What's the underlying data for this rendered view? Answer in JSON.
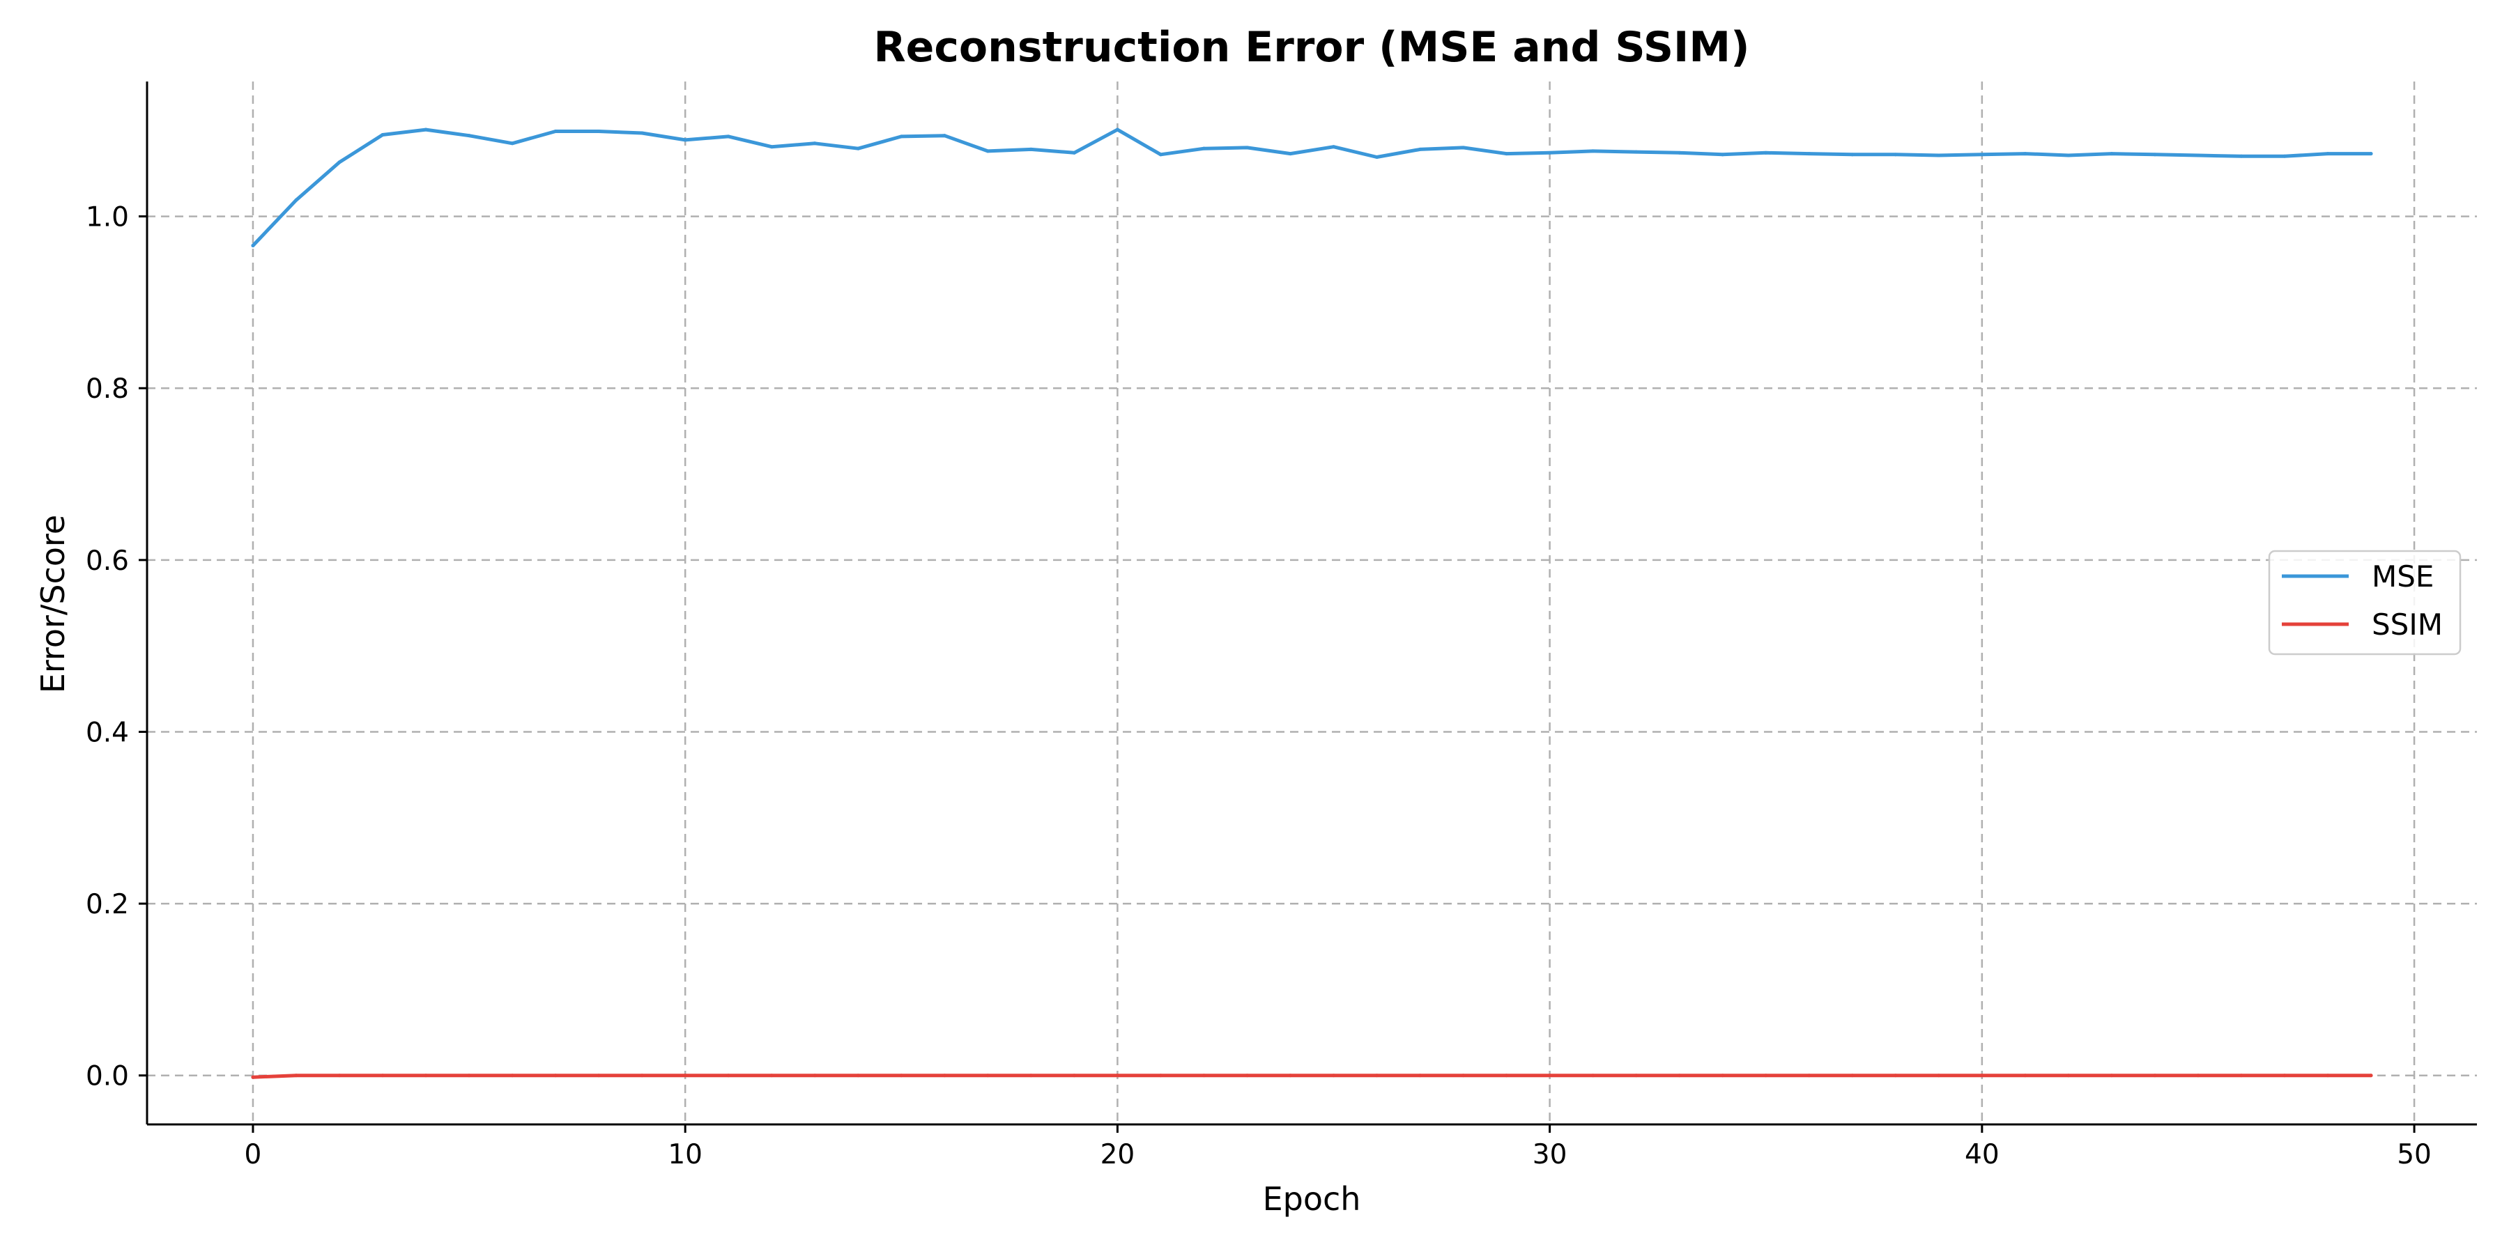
{
  "chart_data": {
    "type": "line",
    "title": "Reconstruction Error (MSE and SSIM)",
    "xlabel": "Epoch",
    "ylabel": "Error/Score",
    "xlim": [
      -2.45,
      51.45
    ],
    "ylim": [
      -0.057,
      1.157
    ],
    "xticks": [
      0,
      10,
      20,
      30,
      40,
      50
    ],
    "yticks": [
      0.0,
      0.2,
      0.4,
      0.6,
      0.8,
      1.0
    ],
    "grid": true,
    "legend_position": "center-right",
    "x": [
      0,
      1,
      2,
      3,
      4,
      5,
      6,
      7,
      8,
      9,
      10,
      11,
      12,
      13,
      14,
      15,
      16,
      17,
      18,
      19,
      20,
      21,
      22,
      23,
      24,
      25,
      26,
      27,
      28,
      29,
      30,
      31,
      32,
      33,
      34,
      35,
      36,
      37,
      38,
      39,
      40,
      41,
      42,
      43,
      44,
      45,
      46,
      47,
      48,
      49
    ],
    "series": [
      {
        "name": "MSE",
        "color": "#3b97d9",
        "values": [
          0.966,
          1.019,
          1.063,
          1.095,
          1.101,
          1.094,
          1.085,
          1.099,
          1.099,
          1.097,
          1.089,
          1.093,
          1.081,
          1.085,
          1.079,
          1.093,
          1.094,
          1.076,
          1.078,
          1.074,
          1.101,
          1.072,
          1.079,
          1.08,
          1.073,
          1.081,
          1.069,
          1.078,
          1.08,
          1.073,
          1.074,
          1.076,
          1.075,
          1.074,
          1.072,
          1.074,
          1.073,
          1.072,
          1.072,
          1.071,
          1.072,
          1.073,
          1.071,
          1.073,
          1.072,
          1.071,
          1.07,
          1.07,
          1.073,
          1.073
        ]
      },
      {
        "name": "SSIM",
        "color": "#e5413a",
        "values": [
          -0.002,
          0.0,
          0.0,
          0.0,
          0.0,
          0.0,
          0.0,
          0.0,
          0.0,
          0.0,
          0.0,
          0.0,
          0.0,
          0.0,
          0.0,
          0.0,
          0.0,
          0.0,
          0.0,
          0.0,
          0.0,
          0.0,
          0.0,
          0.0,
          0.0,
          0.0,
          0.0,
          0.0,
          0.0,
          0.0,
          0.0,
          0.0,
          0.0,
          0.0,
          0.0,
          0.0,
          0.0,
          0.0,
          0.0,
          0.0,
          0.0,
          0.0,
          0.0,
          0.0,
          0.0,
          0.0,
          0.0,
          0.0,
          0.0,
          0.0
        ]
      }
    ]
  }
}
